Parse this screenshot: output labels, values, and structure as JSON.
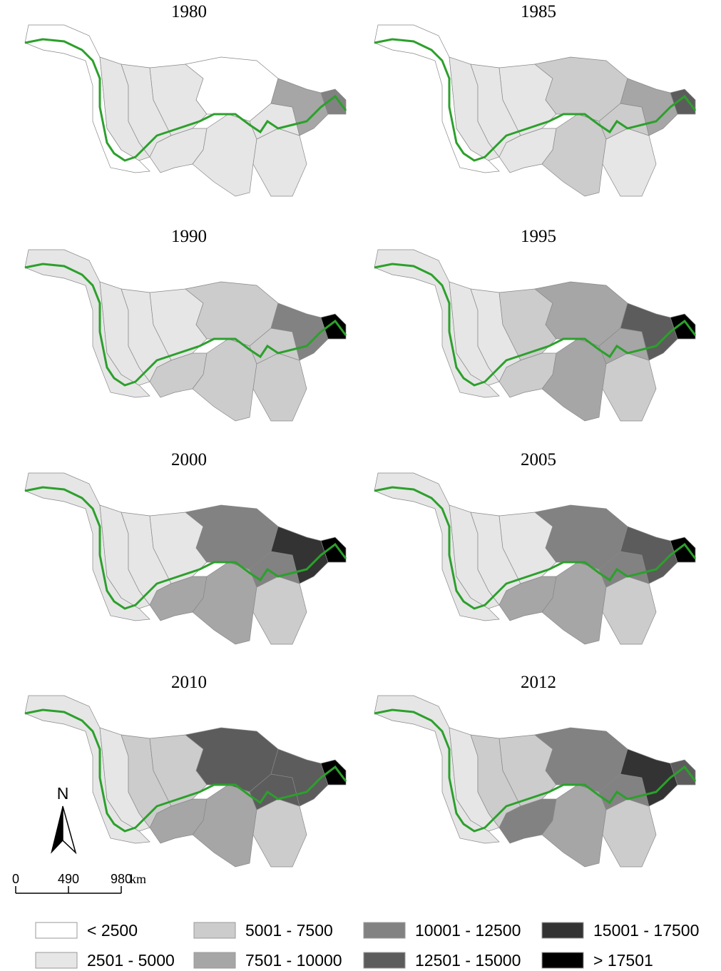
{
  "maps": [
    {
      "title": "1980",
      "fills": [
        "#ffffff",
        "#e6e6e6",
        "#e6e6e6",
        "#e6e6e6",
        "#ffffff",
        "#e6e6e6",
        "#e6e6e6",
        "#e6e6e6",
        "#e6e6e6",
        "#a6a6a6",
        "#828282"
      ]
    },
    {
      "title": "1985",
      "fills": [
        "#ffffff",
        "#e6e6e6",
        "#e6e6e6",
        "#e6e6e6",
        "#cccccc",
        "#e6e6e6",
        "#cccccc",
        "#e6e6e6",
        "#cccccc",
        "#a6a6a6",
        "#5c5c5c"
      ]
    },
    {
      "title": "1990",
      "fills": [
        "#e6e6e6",
        "#e6e6e6",
        "#e6e6e6",
        "#e6e6e6",
        "#cccccc",
        "#cccccc",
        "#cccccc",
        "#cccccc",
        "#cccccc",
        "#828282",
        "#000000"
      ]
    },
    {
      "title": "1995",
      "fills": [
        "#e6e6e6",
        "#e6e6e6",
        "#e6e6e6",
        "#cccccc",
        "#a6a6a6",
        "#cccccc",
        "#a6a6a6",
        "#cccccc",
        "#a6a6a6",
        "#5c5c5c",
        "#000000"
      ]
    },
    {
      "title": "2000",
      "fills": [
        "#e6e6e6",
        "#e6e6e6",
        "#e6e6e6",
        "#e6e6e6",
        "#828282",
        "#a6a6a6",
        "#a6a6a6",
        "#cccccc",
        "#828282",
        "#333333",
        "#000000"
      ]
    },
    {
      "title": "2005",
      "fills": [
        "#e6e6e6",
        "#e6e6e6",
        "#e6e6e6",
        "#e6e6e6",
        "#828282",
        "#a6a6a6",
        "#a6a6a6",
        "#cccccc",
        "#828282",
        "#5c5c5c",
        "#000000"
      ]
    },
    {
      "title": "2010",
      "fills": [
        "#e6e6e6",
        "#e6e6e6",
        "#cccccc",
        "#cccccc",
        "#5c5c5c",
        "#a6a6a6",
        "#a6a6a6",
        "#cccccc",
        "#5c5c5c",
        "#5c5c5c",
        "#000000"
      ]
    },
    {
      "title": "2012",
      "fills": [
        "#e6e6e6",
        "#e6e6e6",
        "#cccccc",
        "#cccccc",
        "#828282",
        "#828282",
        "#a6a6a6",
        "#cccccc",
        "#828282",
        "#333333",
        "#5c5c5c"
      ]
    }
  ],
  "north": "N",
  "scale": {
    "ticks": [
      0,
      490,
      980
    ],
    "unit": "km"
  },
  "legend": [
    {
      "label": "< 2500",
      "color": "#ffffff"
    },
    {
      "label": "2501 - 5000",
      "color": "#e6e6e6"
    },
    {
      "label": "5001 - 7500",
      "color": "#cccccc"
    },
    {
      "label": "7501 - 10000",
      "color": "#a6a6a6"
    },
    {
      "label": "10001 - 12500",
      "color": "#828282"
    },
    {
      "label": "12501 - 15000",
      "color": "#5c5c5c"
    },
    {
      "label": "15001 - 17500",
      "color": "#333333"
    },
    {
      "label": "> 17501",
      "color": "#000000"
    }
  ]
}
